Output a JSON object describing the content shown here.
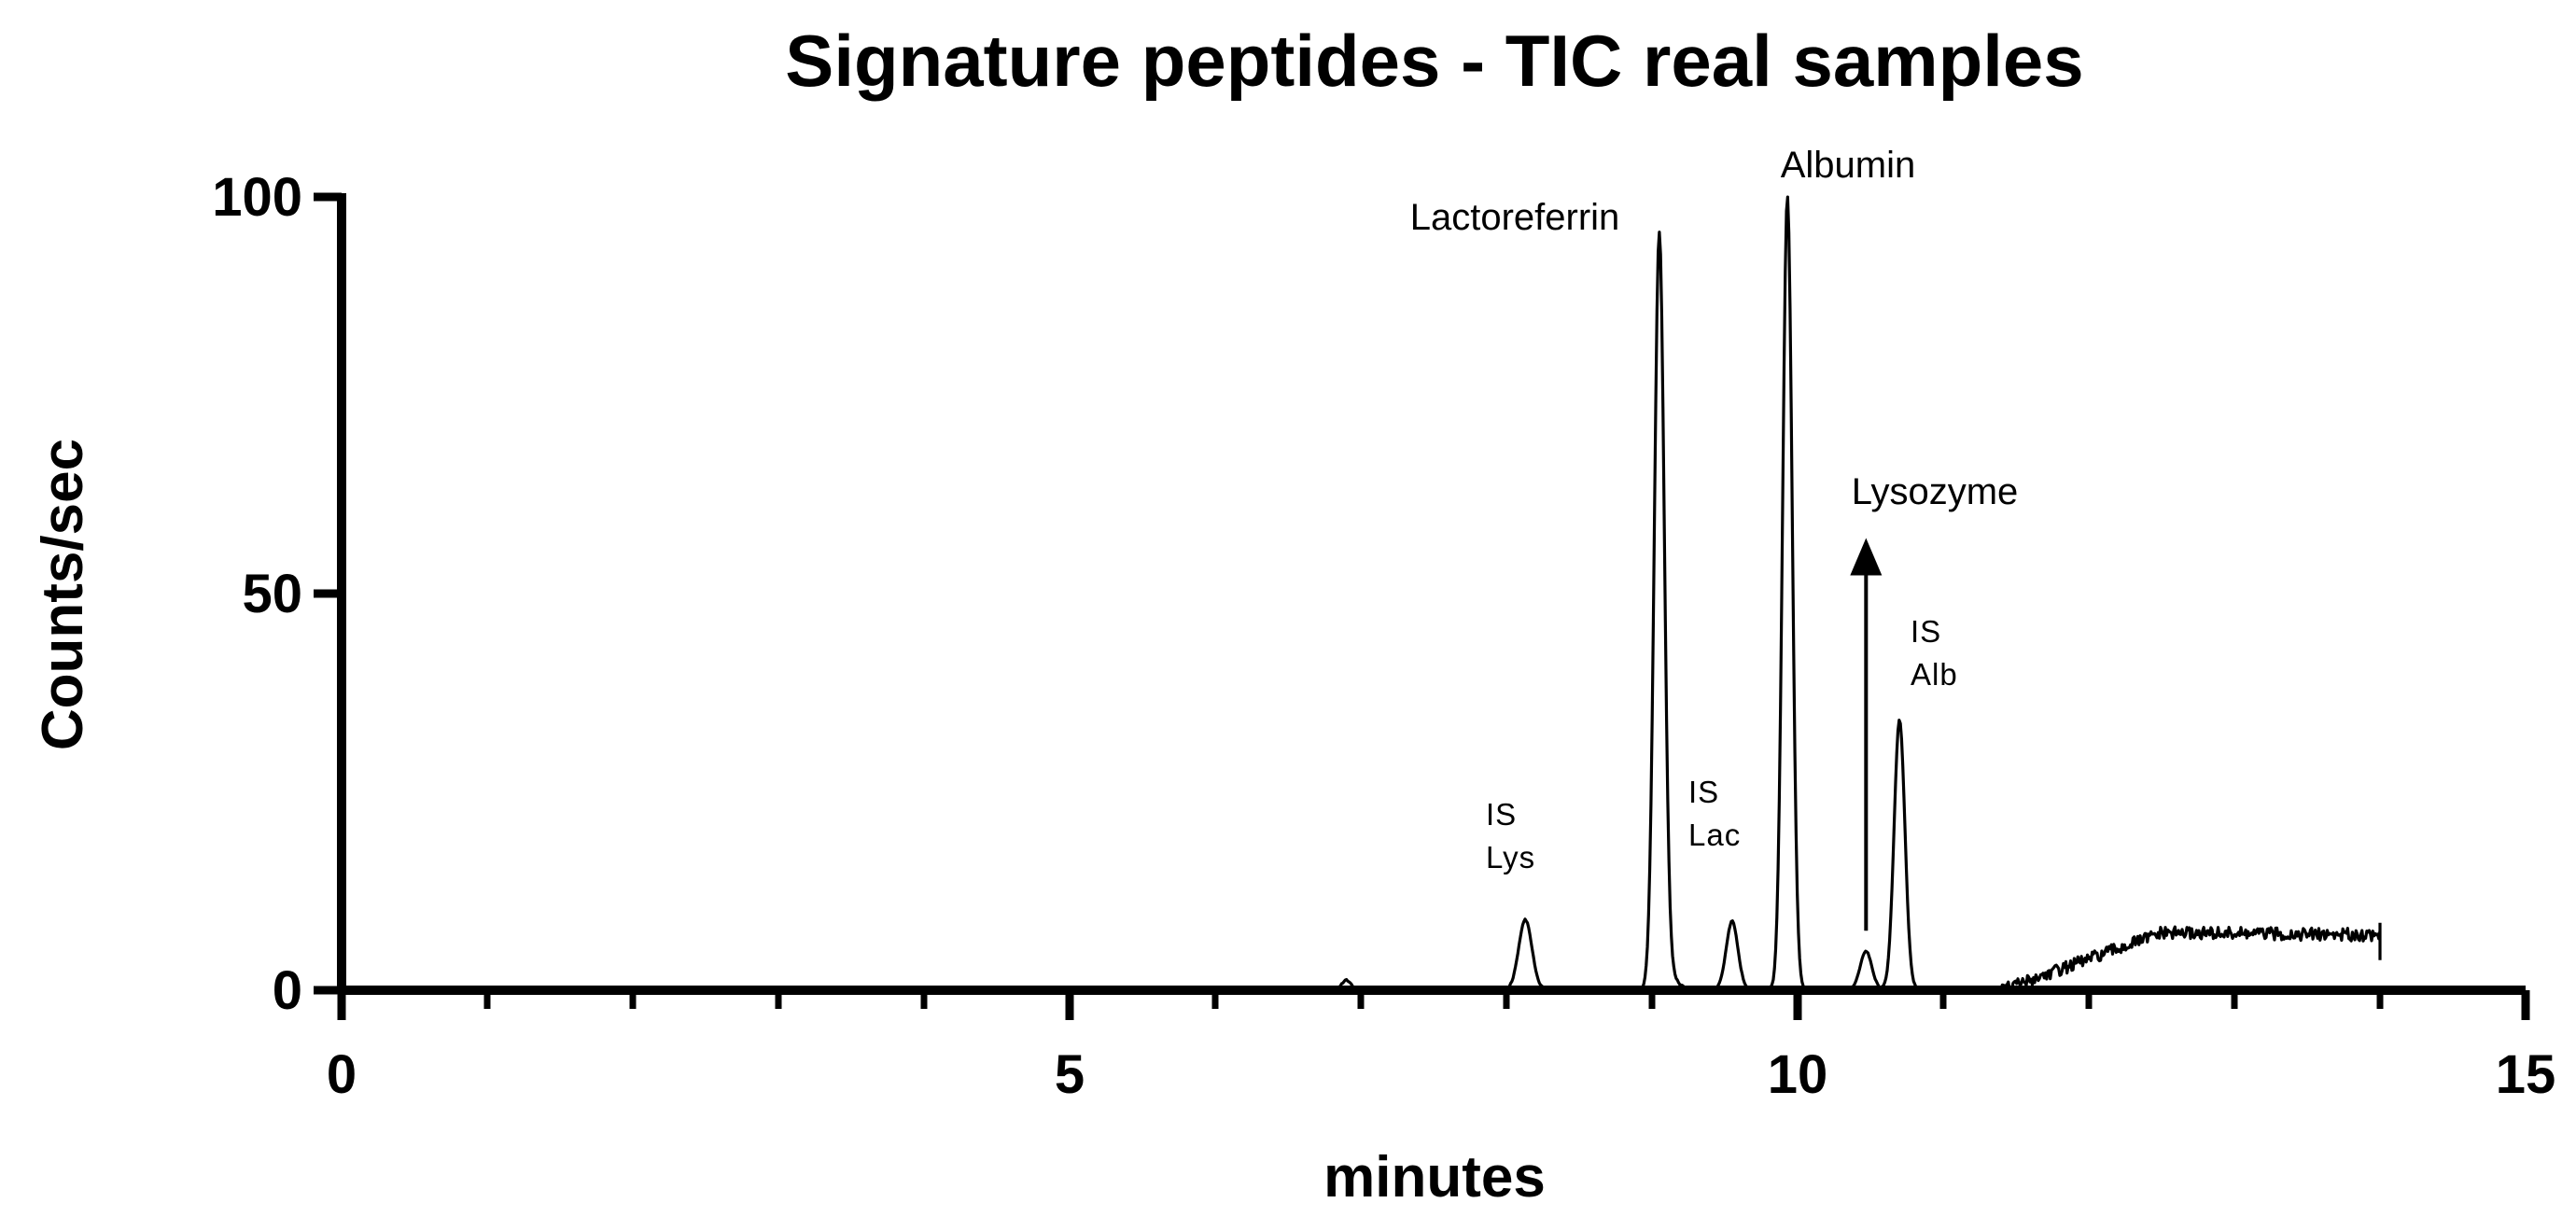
{
  "chart_data": {
    "type": "line",
    "title": "Signature peptides - TIC real samples",
    "xlabel": "minutes",
    "ylabel": "Counts/sec",
    "xlim": [
      0,
      15
    ],
    "ylim": [
      0,
      100
    ],
    "x_major_ticks": [
      0,
      5,
      10,
      15
    ],
    "x_minor_ticks": [
      1,
      2,
      3,
      4,
      6,
      7,
      8,
      9,
      11,
      12,
      13,
      14
    ],
    "y_ticks": [
      0,
      50,
      100
    ],
    "x_tick_labels": [
      "0",
      "5",
      "10",
      "15"
    ],
    "y_tick_labels": [
      "0",
      "50",
      "100"
    ],
    "grid": false,
    "legend": "none",
    "series": [
      {
        "color": "#000000",
        "peaks": [
          {
            "x": 6.9,
            "height": 1.2,
            "width": 0.03
          },
          {
            "x": 8.13,
            "height": 8.8,
            "width": 0.045
          },
          {
            "x": 9.05,
            "height": 94,
            "width": 0.034
          },
          {
            "x": 9.1,
            "height": 2.2,
            "width": 0.06
          },
          {
            "x": 9.55,
            "height": 8.6,
            "width": 0.04
          },
          {
            "x": 9.93,
            "height": 100,
            "width": 0.033
          },
          {
            "x": 10.47,
            "height": 4.8,
            "width": 0.04
          },
          {
            "x": 10.7,
            "height": 34,
            "width": 0.037
          }
        ],
        "x_end": 14.0
      }
    ],
    "annotations": [
      {
        "text": "Lactoreferrin",
        "x": 9.05,
        "y": 94
      },
      {
        "text": "Albumin",
        "x": 9.93,
        "y": 100
      },
      {
        "text": "Lysozyme",
        "x": 10.47,
        "y": 56
      },
      {
        "lines": [
          "IS",
          "Lys"
        ],
        "x": 8.13
      },
      {
        "lines": [
          "IS",
          "Lac"
        ],
        "x": 9.55
      },
      {
        "lines": [
          "IS",
          "Alb"
        ],
        "x": 10.7
      }
    ],
    "arrow": {
      "x": 10.47,
      "y_from": 7.5,
      "y_to": 57
    }
  }
}
